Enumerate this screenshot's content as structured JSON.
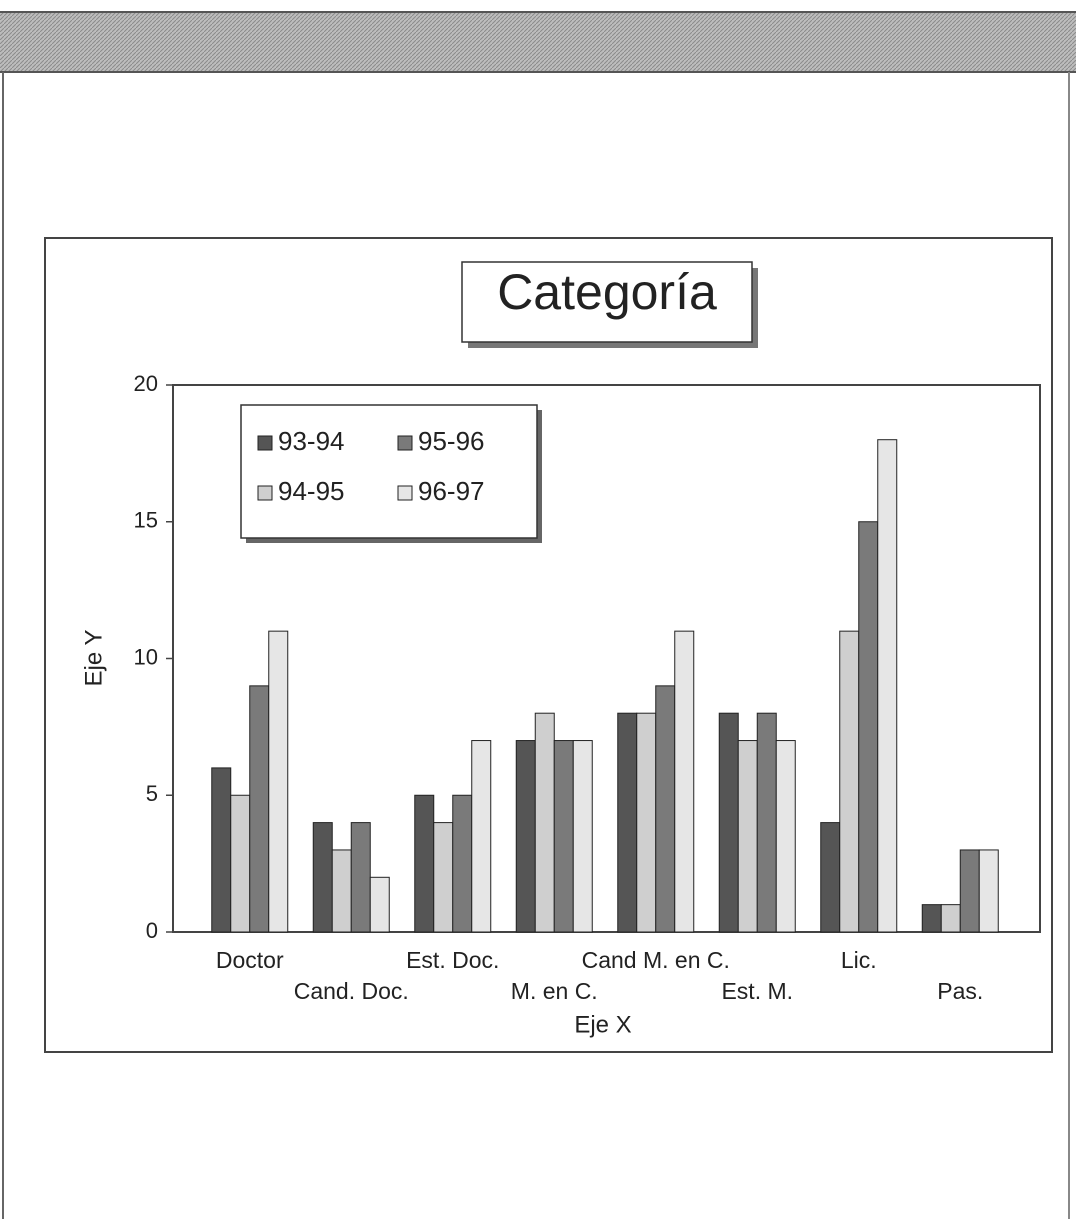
{
  "chart_data": {
    "type": "bar",
    "title": "Categoría",
    "x_label": "Eje X",
    "y_label": "Eje Y",
    "categories": [
      "Doctor",
      "Cand. Doc.",
      "Est. Doc.",
      "M. en C.",
      "Cand M. en C.",
      "Est. M.",
      "Lic.",
      "Pas."
    ],
    "series": [
      {
        "name": "93-94",
        "color": "#555555",
        "values": [
          6,
          4,
          5,
          7,
          8,
          8,
          4,
          1
        ]
      },
      {
        "name": "94-95",
        "color": "#cfcfcf",
        "values": [
          5,
          3,
          4,
          8,
          8,
          7,
          11,
          1
        ]
      },
      {
        "name": "95-96",
        "color": "#7a7a7a",
        "values": [
          9,
          4,
          5,
          7,
          9,
          8,
          15,
          3
        ]
      },
      {
        "name": "96-97",
        "color": "#e6e6e6",
        "values": [
          11,
          2,
          7,
          7,
          11,
          7,
          18,
          3
        ]
      }
    ],
    "ylim": [
      0,
      20
    ],
    "yticks": [
      0,
      5,
      10,
      15,
      20
    ],
    "legend": "upper left"
  }
}
